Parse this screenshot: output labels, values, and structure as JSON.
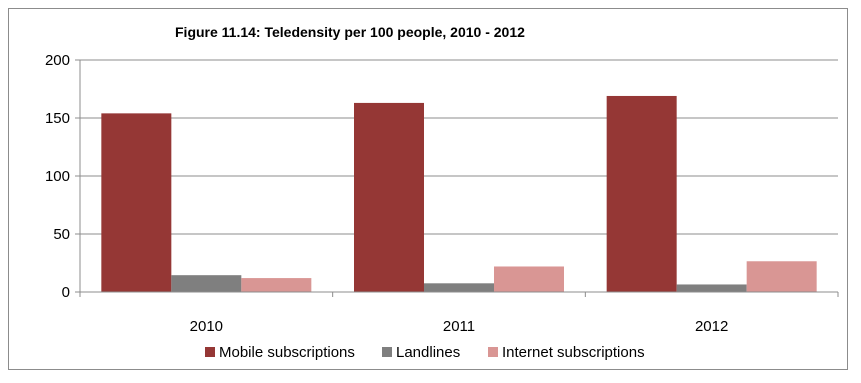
{
  "chart_data": {
    "type": "bar",
    "title": "Figure 11.14: Teledensity per 100 people, 2010 - 2012",
    "categories": [
      "2010",
      "2011",
      "2012"
    ],
    "series": [
      {
        "name": "Mobile subscriptions",
        "color": "#953735",
        "values": [
          154,
          163,
          169
        ]
      },
      {
        "name": "Landlines",
        "color": "#7f7f7f",
        "values": [
          14.5,
          7.5,
          6.5
        ]
      },
      {
        "name": "Internet subscriptions",
        "color": "#d99694",
        "values": [
          12,
          22,
          26.5
        ]
      }
    ],
    "ylim": [
      0,
      200
    ],
    "yticks": [
      "0",
      "50",
      "100",
      "150",
      "200"
    ],
    "grid": true,
    "legend": "bottom"
  }
}
